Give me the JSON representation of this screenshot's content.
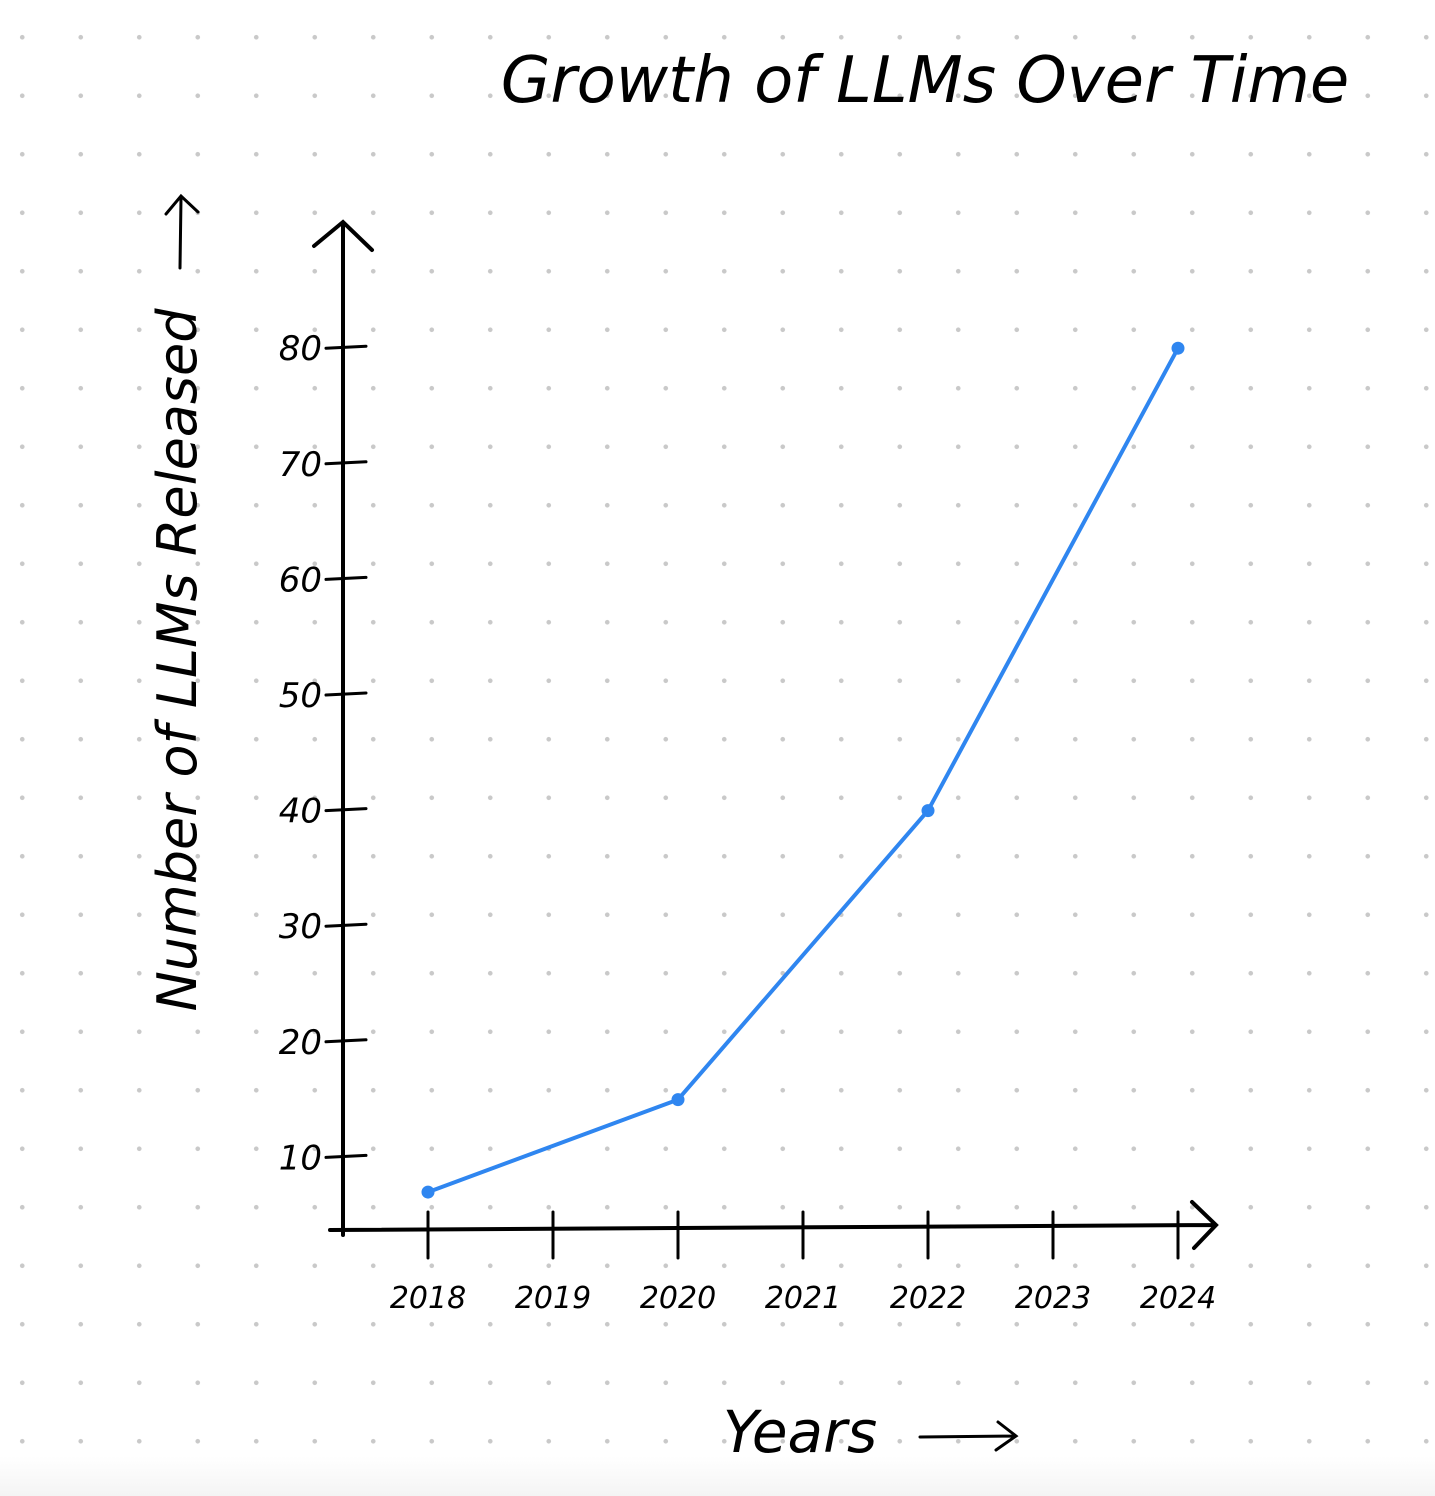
{
  "chart_data": {
    "type": "line",
    "title": "Growth of LLMs Over Time",
    "xlabel": "Years",
    "ylabel": "Number of LLMs Released",
    "categories": [
      "2018",
      "2019",
      "2020",
      "2021",
      "2022",
      "2023",
      "2024"
    ],
    "x": [
      "2018",
      "2020",
      "2022",
      "2024"
    ],
    "values": [
      7,
      15,
      40,
      80
    ],
    "y_ticks": [
      10,
      20,
      30,
      40,
      50,
      60,
      70,
      80
    ],
    "ylim": [
      4,
      88
    ],
    "grid": false,
    "series_color": "#2f86f0"
  }
}
